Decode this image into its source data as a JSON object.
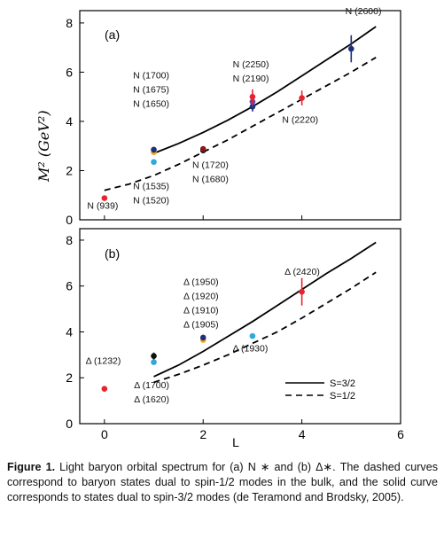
{
  "colors": {
    "red": "#e8232f",
    "cyan": "#2ea9dc",
    "navy": "#1f2f7a",
    "purple": "#6b3fa0",
    "orange": "#f2a81d",
    "black": "#111111",
    "darkred": "#8a1a1a"
  },
  "chart_data": [
    {
      "type": "scatter",
      "panel_label": "(a)",
      "xlabel": "",
      "ylabel": "M² (GeV²)",
      "xlim": [
        -0.5,
        6
      ],
      "ylim": [
        0,
        8.5
      ],
      "y_ticks": [
        "0",
        "2",
        "4",
        "6",
        "8"
      ],
      "grid": false,
      "curves": [
        {
          "style": "solid",
          "x": [
            1,
            1.5,
            2,
            2.5,
            3,
            3.5,
            4,
            4.5,
            5,
            5.5
          ],
          "y": [
            2.7,
            3.1,
            3.55,
            4.05,
            4.6,
            5.2,
            5.85,
            6.5,
            7.15,
            7.85
          ]
        },
        {
          "style": "dashed",
          "x": [
            0,
            0.5,
            1,
            1.5,
            2,
            2.5,
            3,
            3.5,
            4,
            4.5,
            5,
            5.5
          ],
          "y": [
            1.2,
            1.45,
            1.8,
            2.25,
            2.75,
            3.25,
            3.8,
            4.35,
            4.9,
            5.45,
            6.0,
            6.6
          ]
        }
      ],
      "points": [
        {
          "x": 0,
          "y": 0.88,
          "color": "red",
          "err": 0
        },
        {
          "x": 1,
          "y": 2.35,
          "color": "cyan",
          "err": 0
        },
        {
          "x": 1,
          "y": 2.75,
          "color": "orange",
          "err": 0
        },
        {
          "x": 1,
          "y": 2.85,
          "color": "navy",
          "err": 0.12
        },
        {
          "x": 2,
          "y": 2.82,
          "color": "black",
          "err": 0.1
        },
        {
          "x": 2,
          "y": 2.88,
          "color": "darkred",
          "err": 0
        },
        {
          "x": 3,
          "y": 4.6,
          "color": "navy",
          "err": 0.2
        },
        {
          "x": 3,
          "y": 4.8,
          "color": "purple",
          "err": 0.2
        },
        {
          "x": 3,
          "y": 5.0,
          "color": "red",
          "err": 0.3
        },
        {
          "x": 4,
          "y": 4.95,
          "color": "red",
          "err": 0.3
        },
        {
          "x": 5,
          "y": 6.95,
          "color": "navy",
          "err": 0.55
        }
      ],
      "annotations": [
        {
          "lines": [
            "N (939)"
          ],
          "x": -0.35,
          "y": 0.45
        },
        {
          "lines": [
            "N (1700)",
            "N (1675)",
            "N (1650)"
          ],
          "x": 0.58,
          "y": 5.75
        },
        {
          "lines": [
            "N (1535)",
            "N (1520)"
          ],
          "x": 0.58,
          "y": 1.25
        },
        {
          "lines": [
            "N (1720)",
            "N (1680)"
          ],
          "x": 1.78,
          "y": 2.1
        },
        {
          "lines": [
            "N (2250)",
            "N (2190)"
          ],
          "x": 2.6,
          "y": 6.2
        },
        {
          "lines": [
            "N (2220)"
          ],
          "x": 3.6,
          "y": 3.95
        },
        {
          "lines": [
            "N (2600)"
          ],
          "x": 4.88,
          "y": 8.35
        }
      ]
    },
    {
      "type": "scatter",
      "panel_label": "(b)",
      "xlabel": "L",
      "ylabel": "",
      "xlim": [
        -0.5,
        6
      ],
      "ylim": [
        0,
        8.5
      ],
      "x_ticks": [
        "0",
        "2",
        "4",
        "6"
      ],
      "y_ticks": [
        "0",
        "2",
        "4",
        "6",
        "8"
      ],
      "grid": false,
      "curves": [
        {
          "style": "solid",
          "label": "S=3/2",
          "x": [
            1,
            1.5,
            2,
            2.5,
            3,
            3.5,
            4,
            4.5,
            5,
            5.5
          ],
          "y": [
            2.05,
            2.55,
            3.15,
            3.8,
            4.45,
            5.15,
            5.85,
            6.55,
            7.2,
            7.9
          ]
        },
        {
          "style": "dashed",
          "label": "S=1/2",
          "x": [
            1,
            1.5,
            2,
            2.5,
            3,
            3.5,
            4,
            4.5,
            5,
            5.5
          ],
          "y": [
            1.8,
            2.15,
            2.55,
            3.0,
            3.5,
            4.0,
            4.6,
            5.25,
            5.9,
            6.6
          ]
        }
      ],
      "points": [
        {
          "x": 0,
          "y": 1.52,
          "color": "red",
          "err": 0
        },
        {
          "x": 1,
          "y": 2.68,
          "color": "cyan",
          "err": 0
        },
        {
          "x": 1,
          "y": 2.95,
          "color": "black",
          "err": 0.15
        },
        {
          "x": 2,
          "y": 3.65,
          "color": "orange",
          "err": 0
        },
        {
          "x": 2,
          "y": 3.75,
          "color": "navy",
          "err": 0.12
        },
        {
          "x": 3,
          "y": 3.82,
          "color": "cyan",
          "err": 0
        },
        {
          "x": 4,
          "y": 5.75,
          "color": "red",
          "err": 0.6
        }
      ],
      "annotations": [
        {
          "lines": [
            "Δ (1232)"
          ],
          "x": -0.38,
          "y": 2.6
        },
        {
          "lines": [
            "Δ (1950)",
            "Δ (1920)",
            "Δ (1910)",
            "Δ (1905)"
          ],
          "x": 1.6,
          "y": 6.05
        },
        {
          "lines": [
            "Δ (1700)",
            "Δ (1620)"
          ],
          "x": 0.6,
          "y": 1.55
        },
        {
          "lines": [
            "Δ (1930)"
          ],
          "x": 2.6,
          "y": 3.15
        },
        {
          "lines": [
            "Δ (2420)"
          ],
          "x": 3.65,
          "y": 6.5
        }
      ],
      "legend": {
        "position": "bottom-right"
      }
    }
  ],
  "caption": {
    "label": "Figure 1.",
    "text": "Light baryon orbital spectrum for (a) N ∗ and (b) Δ∗. The dashed curves correspond to baryon states dual to spin-1/2 modes in the bulk, and the solid curve corresponds to states dual to spin-3/2 modes (de Teramond and Brodsky, 2005)."
  }
}
